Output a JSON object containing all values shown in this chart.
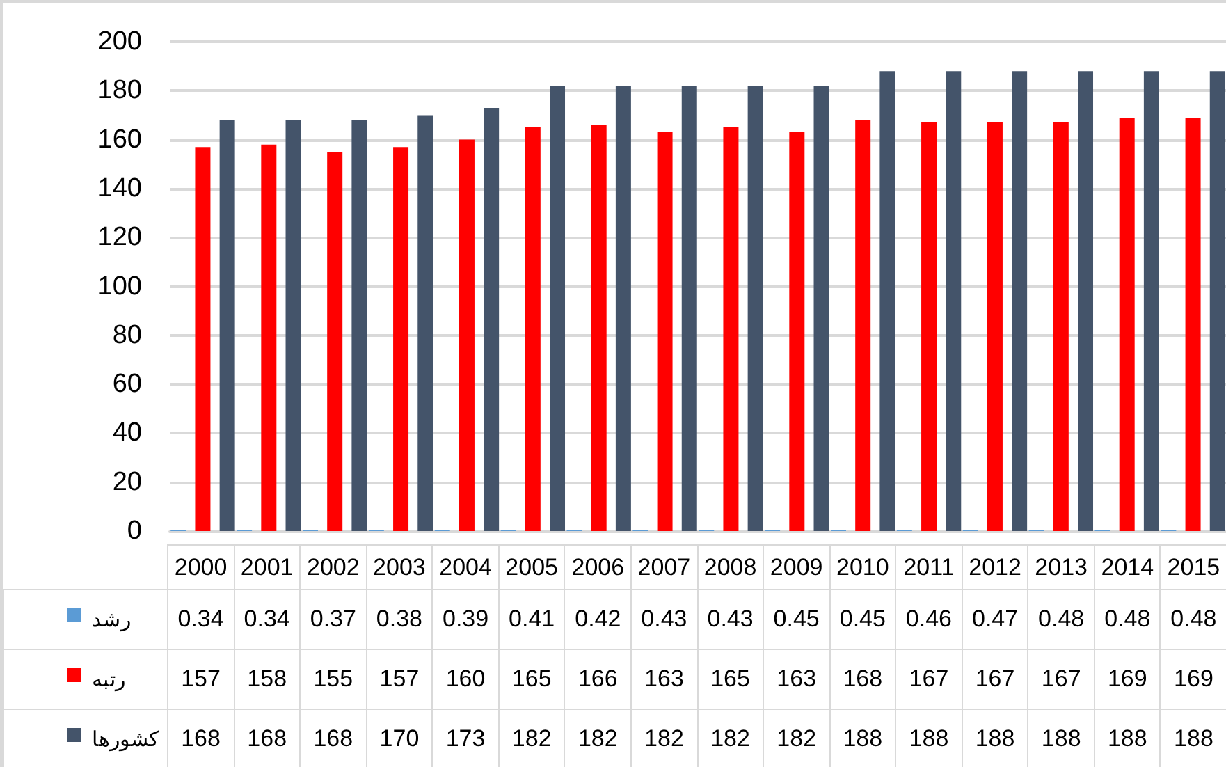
{
  "chart_data": {
    "type": "bar",
    "categories": [
      "2000",
      "2001",
      "2002",
      "2003",
      "2004",
      "2005",
      "2006",
      "2007",
      "2008",
      "2009",
      "2010",
      "2011",
      "2012",
      "2013",
      "2014",
      "2015"
    ],
    "series": [
      {
        "name": "رشد",
        "color": "#5b9bd5",
        "values": [
          0.34,
          0.34,
          0.37,
          0.38,
          0.39,
          0.41,
          0.42,
          0.43,
          0.43,
          0.45,
          0.45,
          0.46,
          0.47,
          0.48,
          0.48,
          0.48
        ]
      },
      {
        "name": "رتبه",
        "color": "#ff0000",
        "values": [
          157,
          158,
          155,
          157,
          160,
          165,
          166,
          163,
          165,
          163,
          168,
          167,
          167,
          167,
          169,
          169
        ]
      },
      {
        "name": "کشورها",
        "color": "#44546a",
        "values": [
          168,
          168,
          168,
          170,
          173,
          182,
          182,
          182,
          182,
          182,
          188,
          188,
          188,
          188,
          188,
          188
        ]
      }
    ],
    "ylim": [
      0,
      200
    ],
    "yticks": [
      0,
      20,
      40,
      60,
      80,
      100,
      120,
      140,
      160,
      180,
      200
    ],
    "grid": "y",
    "legend": "bottom",
    "data_labels": true
  }
}
